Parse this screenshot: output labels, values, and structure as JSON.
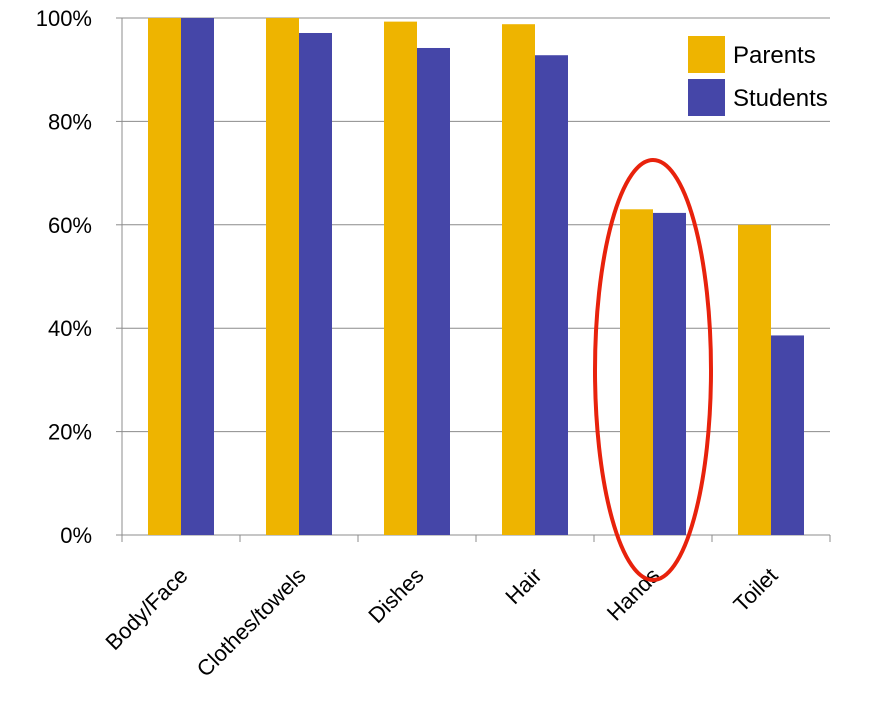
{
  "chart_data": {
    "type": "bar",
    "categories": [
      "Body/Face",
      "Clothes/towels",
      "Dishes",
      "Hair",
      "Hands",
      "Toilet"
    ],
    "series": [
      {
        "name": "Parents",
        "color": "#EEB400",
        "values": [
          100,
          100,
          99.3,
          98.8,
          63,
          60
        ]
      },
      {
        "name": "Students",
        "color": "#4546A8",
        "values": [
          100,
          97.1,
          94.2,
          92.8,
          62.3,
          38.6
        ]
      }
    ],
    "y_ticks": [
      "0%",
      "20%",
      "40%",
      "60%",
      "80%",
      "100%"
    ],
    "ylim": [
      0,
      100
    ],
    "grid": true,
    "legend_position": "top-right",
    "highlight": {
      "category": "Hands",
      "shape": "ellipse",
      "color": "#E8220C"
    }
  }
}
